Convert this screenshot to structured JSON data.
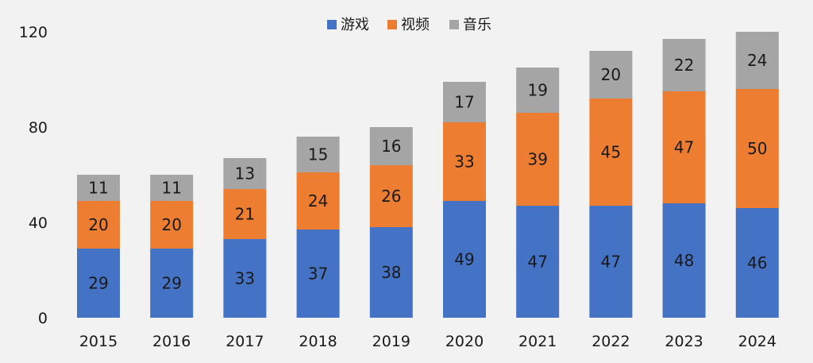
{
  "chart_data": {
    "type": "bar",
    "stacked": true,
    "categories": [
      "2015",
      "2016",
      "2017",
      "2018",
      "2019",
      "2020",
      "2021",
      "2022",
      "2023",
      "2024"
    ],
    "series": [
      {
        "name": "游戏",
        "color": "#4472c4",
        "values": [
          29,
          29,
          33,
          37,
          38,
          49,
          47,
          47,
          48,
          46
        ]
      },
      {
        "name": "视频",
        "color": "#ed7d31",
        "values": [
          20,
          20,
          21,
          24,
          26,
          33,
          39,
          45,
          47,
          50
        ]
      },
      {
        "name": "音乐",
        "color": "#a5a5a5",
        "values": [
          11,
          11,
          13,
          15,
          16,
          17,
          19,
          20,
          22,
          24
        ]
      }
    ],
    "y_ticks": [
      "0",
      "40",
      "80",
      "120"
    ],
    "ylim": [
      0,
      120
    ],
    "grid": false,
    "legend_position": "top-center",
    "data_labels": true
  }
}
